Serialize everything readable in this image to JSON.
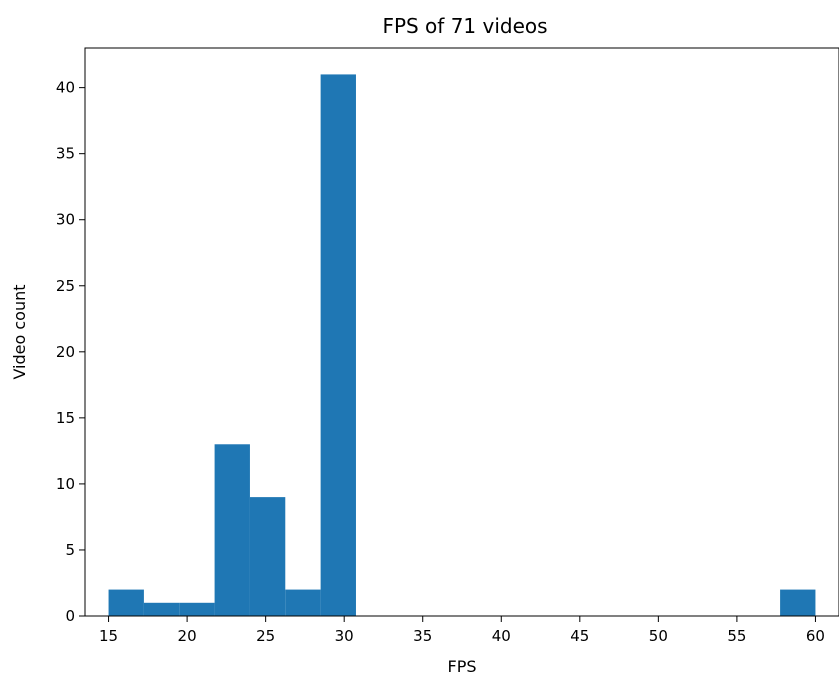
{
  "chart_data": {
    "type": "bar",
    "title": "FPS of 71 videos",
    "xlabel": "FPS",
    "ylabel": "Video count",
    "xlim": [
      13.5,
      61.5
    ],
    "ylim": [
      0,
      43
    ],
    "xticks": [
      15,
      20,
      25,
      30,
      35,
      40,
      45,
      50,
      55,
      60
    ],
    "yticks": [
      0,
      5,
      10,
      15,
      20,
      25,
      30,
      35,
      40
    ],
    "bins": [
      {
        "x0": 15.0,
        "x1": 17.25,
        "value": 2
      },
      {
        "x0": 17.25,
        "x1": 19.5,
        "value": 1
      },
      {
        "x0": 19.5,
        "x1": 21.75,
        "value": 1
      },
      {
        "x0": 21.75,
        "x1": 24.0,
        "value": 13
      },
      {
        "x0": 24.0,
        "x1": 26.25,
        "value": 9
      },
      {
        "x0": 26.25,
        "x1": 28.5,
        "value": 2
      },
      {
        "x0": 28.5,
        "x1": 30.75,
        "value": 41
      },
      {
        "x0": 57.75,
        "x1": 60.0,
        "value": 2
      }
    ],
    "bar_color": "#1f77b4",
    "grid": false,
    "legend": "none"
  }
}
